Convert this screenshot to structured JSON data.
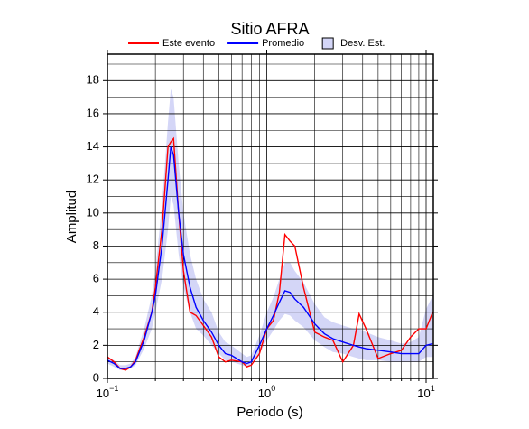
{
  "chart_data": {
    "type": "line",
    "title": "Sitio AFRA",
    "xlabel": "Periodo (s)",
    "ylabel": "Amplitud",
    "xscale": "log",
    "grid": true,
    "legend": "top",
    "xlim": [
      0.1,
      11.1
    ],
    "ylim": [
      0,
      19.6
    ],
    "xticks": [
      {
        "value": 0.1,
        "label": "10",
        "exponent": "−1"
      },
      {
        "value": 1,
        "label": "10",
        "exponent": "0"
      },
      {
        "value": 10,
        "label": "10",
        "exponent": "1"
      }
    ],
    "xminor": [
      0.2,
      0.3,
      0.4,
      0.5,
      0.6,
      0.7,
      0.8,
      0.9,
      2,
      3,
      4,
      5,
      6,
      7,
      8,
      9
    ],
    "yticks": [
      0,
      2,
      4,
      6,
      8,
      10,
      12,
      14,
      16,
      18
    ],
    "yminor": [
      1,
      3,
      5,
      7,
      9,
      11,
      13,
      15,
      17,
      19
    ],
    "x": [
      0.1,
      0.11,
      0.12,
      0.13,
      0.14,
      0.15,
      0.17,
      0.19,
      0.2,
      0.22,
      0.24,
      0.25,
      0.26,
      0.28,
      0.3,
      0.33,
      0.36,
      0.4,
      0.45,
      0.5,
      0.55,
      0.6,
      0.7,
      0.75,
      0.8,
      0.9,
      1.0,
      1.1,
      1.2,
      1.3,
      1.4,
      1.5,
      1.7,
      2,
      2.3,
      2.6,
      3,
      3.5,
      3.8,
      4.2,
      5,
      6,
      7,
      8,
      9,
      10,
      11
    ],
    "band": {
      "name": "Desv. Est.",
      "color": "#d4d6f7",
      "lower": [
        0.9,
        0.7,
        0.5,
        0.5,
        0.6,
        0.8,
        1.8,
        3,
        4,
        6,
        9,
        11,
        10.5,
        7.5,
        5.5,
        4,
        3,
        2.6,
        2,
        1.5,
        1.1,
        1.0,
        0.8,
        0.7,
        0.8,
        1.5,
        2.3,
        2.9,
        3.5,
        3.9,
        3.8,
        3.5,
        3.1,
        2.3,
        1.9,
        1.6,
        1.5,
        1.3,
        1.2,
        1.1,
        1.1,
        1.0,
        1.0,
        1.0,
        1.0,
        1.3,
        1.3
      ],
      "upper": [
        1.3,
        1.1,
        0.8,
        0.8,
        0.9,
        1.3,
        3,
        5,
        6.5,
        10.5,
        15.5,
        17.5,
        17,
        13,
        10,
        7.5,
        6,
        4.8,
        4,
        2.8,
        2.2,
        2.0,
        1.5,
        1.3,
        1.4,
        2.6,
        4,
        4.9,
        6,
        7,
        7,
        6.5,
        5.8,
        4.5,
        3.7,
        3.4,
        3.2,
        3.0,
        3.0,
        2.8,
        2.5,
        2.3,
        2.1,
        2.2,
        2.5,
        4.2,
        5.0
      ]
    },
    "series": [
      {
        "name": "Este evento",
        "color": "#ff0000",
        "values": [
          1.3,
          1.0,
          0.6,
          0.5,
          0.7,
          1.1,
          2.5,
          4.0,
          5.5,
          9,
          14,
          14.3,
          14.5,
          10,
          6.5,
          4,
          3.8,
          3.2,
          2.5,
          1.3,
          1.0,
          1.1,
          1.0,
          0.7,
          0.8,
          1.5,
          3.0,
          3.5,
          5.2,
          8.7,
          8.3,
          8.0,
          5.5,
          2.8,
          2.5,
          2.3,
          1.0,
          2.0,
          3.9,
          3.0,
          1.2,
          1.5,
          1.7,
          2.5,
          3.0,
          3.0,
          4.0
        ]
      },
      {
        "name": "Promedio",
        "color": "#0000ff",
        "values": [
          1.1,
          0.9,
          0.6,
          0.6,
          0.7,
          1.0,
          2.3,
          4.0,
          5.0,
          8,
          12,
          14,
          13.5,
          10,
          7.5,
          5.5,
          4.3,
          3.5,
          2.8,
          2.0,
          1.5,
          1.4,
          1.0,
          0.9,
          1.0,
          2.0,
          3.0,
          3.8,
          4.6,
          5.3,
          5.2,
          4.8,
          4.3,
          3.3,
          2.7,
          2.4,
          2.2,
          2.0,
          1.9,
          1.8,
          1.7,
          1.6,
          1.5,
          1.5,
          1.5,
          2.0,
          2.1
        ]
      }
    ]
  }
}
